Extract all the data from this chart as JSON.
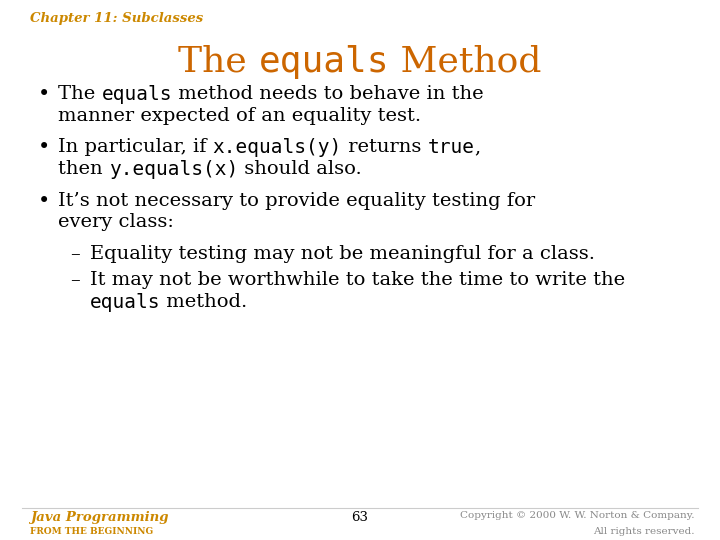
{
  "background_color": "#ffffff",
  "chapter_text": "Chapter 11: Subclasses",
  "chapter_color": "#CC8800",
  "chapter_fontsize": 9.5,
  "title_parts": [
    {
      "text": "The ",
      "style": "normal"
    },
    {
      "text": "equals",
      "style": "mono"
    },
    {
      "text": " Method",
      "style": "normal"
    }
  ],
  "title_color": "#CC6600",
  "title_fontsize": 26,
  "bullet_color": "#000000",
  "bullet_fontsize": 14,
  "bullets": [
    {
      "type": "bullet",
      "indent": 0,
      "lines": [
        [
          {
            "text": "The ",
            "style": "normal"
          },
          {
            "text": "equals",
            "style": "mono"
          },
          {
            "text": " method needs to behave in the",
            "style": "normal"
          }
        ],
        [
          {
            "text": "manner expected of an equality test.",
            "style": "normal"
          }
        ]
      ]
    },
    {
      "type": "bullet",
      "indent": 0,
      "lines": [
        [
          {
            "text": "In particular, if ",
            "style": "normal"
          },
          {
            "text": "x.equals(y)",
            "style": "mono"
          },
          {
            "text": " returns ",
            "style": "normal"
          },
          {
            "text": "true",
            "style": "mono"
          },
          {
            "text": ",",
            "style": "normal"
          }
        ],
        [
          {
            "text": "then ",
            "style": "normal"
          },
          {
            "text": "y.equals(x)",
            "style": "mono"
          },
          {
            "text": " should also.",
            "style": "normal"
          }
        ]
      ]
    },
    {
      "type": "bullet",
      "indent": 0,
      "lines": [
        [
          {
            "text": "It’s not necessary to provide equality testing for",
            "style": "normal"
          }
        ],
        [
          {
            "text": "every class:",
            "style": "normal"
          }
        ]
      ]
    },
    {
      "type": "dash",
      "indent": 1,
      "lines": [
        [
          {
            "text": "Equality testing may not be meaningful for a class.",
            "style": "normal"
          }
        ]
      ]
    },
    {
      "type": "dash",
      "indent": 1,
      "lines": [
        [
          {
            "text": "It may not be worthwhile to take the time to write the",
            "style": "normal"
          }
        ],
        [
          {
            "text": "equals",
            "style": "mono"
          },
          {
            "text": " method.",
            "style": "normal"
          }
        ]
      ]
    }
  ],
  "footer_left_line1": "Java Programming",
  "footer_left_line2": "FROM THE BEGINNING",
  "footer_left_color": "#CC8800",
  "footer_center": "63",
  "footer_center_color": "#000000",
  "footer_right_line1": "Copyright © 2000 W. W. Norton & Company.",
  "footer_right_line2": "All rights reserved.",
  "footer_color": "#888888",
  "footer_fontsize": 7.5
}
